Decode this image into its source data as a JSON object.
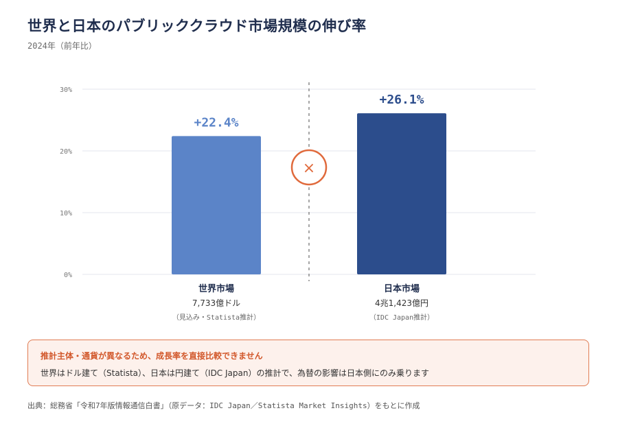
{
  "header": {
    "title": "世界と日本のパブリッククラウド市場規模の伸び率",
    "subtitle": "2024年（前年比）"
  },
  "chart_data": {
    "type": "bar",
    "categories": [
      "世界市場",
      "日本市場"
    ],
    "values": [
      22.4,
      26.1
    ],
    "value_labels": [
      "+22.4%",
      "+26.1%"
    ],
    "market_sizes": [
      "7,733億ドル",
      "4兆1,423億円"
    ],
    "source_notes": [
      "（見込み・Statista推計）",
      "（IDC Japan推計）"
    ],
    "bar_colors": [
      "#5b84c8",
      "#2c4d8c"
    ],
    "ylim": [
      0,
      30
    ],
    "yticks": [
      0,
      10,
      20,
      30
    ],
    "ytick_labels": [
      "0%",
      "10%",
      "20%",
      "30%"
    ],
    "grid": true,
    "divider_symbol": "×",
    "accent_color": "#e06a3c"
  },
  "notice": {
    "heading": "推計主体・通貨が異なるため、成長率を直接比較できません",
    "body": "世界はドル建て（Statista）、日本は円建て（IDC Japan）の推計で、為替の影響は日本側にのみ乗ります"
  },
  "footer": {
    "source": "出典：総務省「令和7年版情報通信白書」（原データ：IDC Japan／Statista Market Insights）をもとに作成"
  }
}
